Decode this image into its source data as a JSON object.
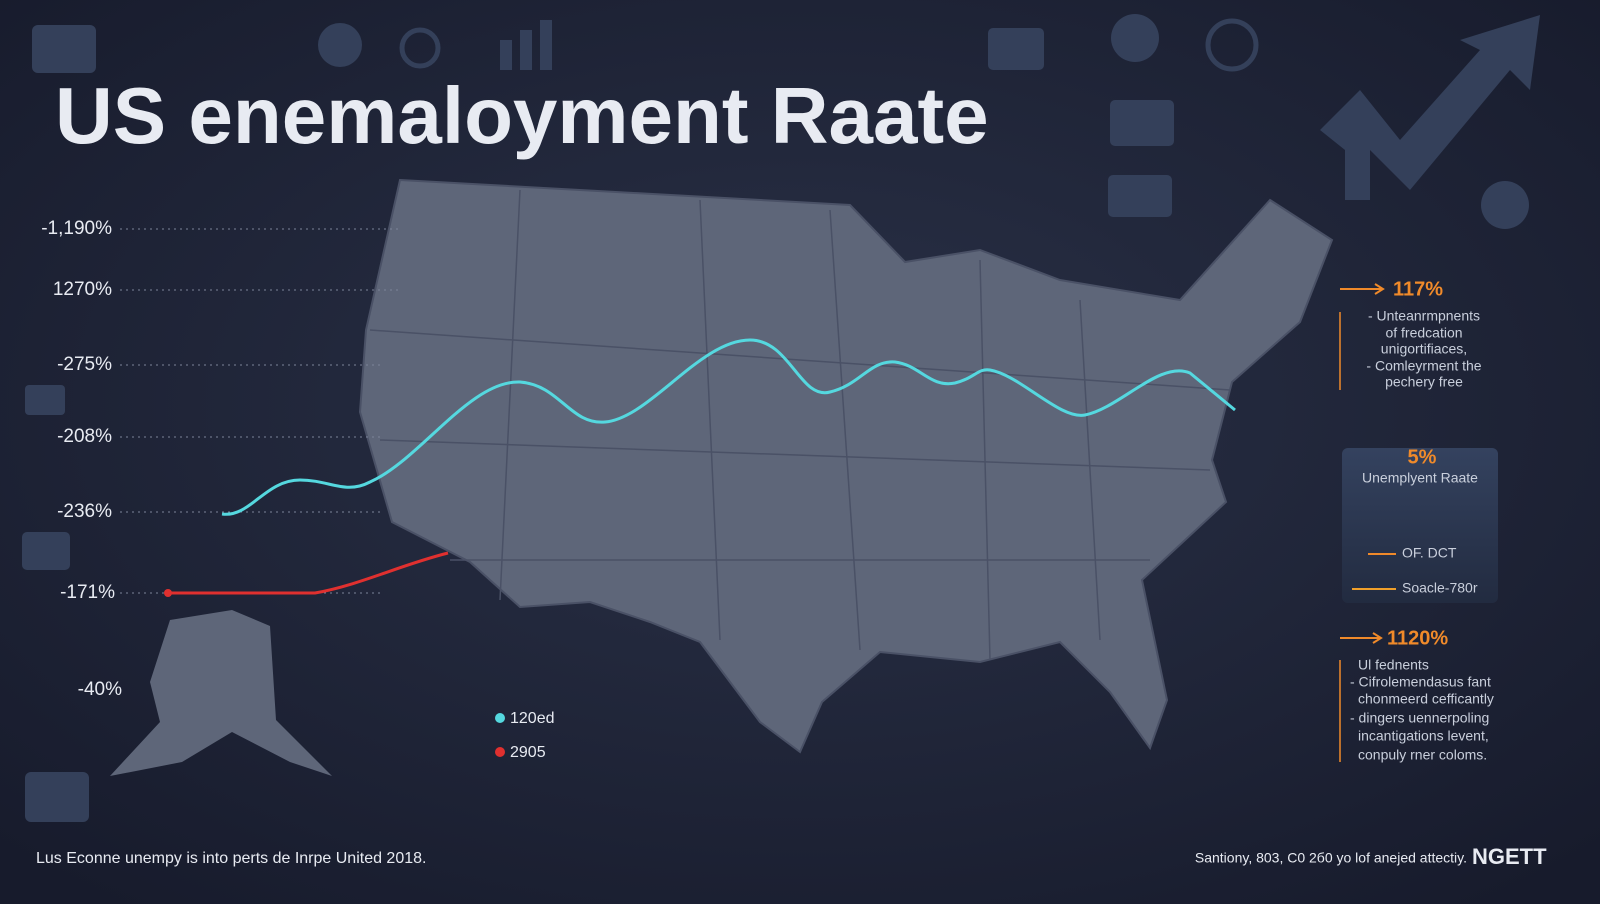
{
  "title": "US enemaloyment Raate",
  "axis_labels": [
    "-1,190%",
    "1270%",
    "-275%",
    "-208%",
    "-236%",
    "-171%",
    "-40%"
  ],
  "legend": [
    "120ed",
    "2905"
  ],
  "callout_top": {
    "value": "117%",
    "lines": [
      "- Unteanrmpnents",
      "of fredcation",
      "unigortifiaces,",
      "- Comleyrment the",
      "pechery free"
    ]
  },
  "panel": {
    "value": "5%",
    "title": "Unemplyent Raate",
    "items": [
      "OF. DCT",
      "Soacle-780r"
    ]
  },
  "callout_bottom": {
    "value": "1120%",
    "lines": [
      "Ul fednents",
      "- Cifrolemendasus fant",
      "chonmeerd cefficantly",
      "- dingers uennerpoling",
      "incantigations levent,",
      "conpuly rner coloms."
    ]
  },
  "footer": {
    "left": "Lus Econne unempy is into perts de Inrpe United 2018.",
    "right": "Santiony, 803, C0 2б0 yo lof anejed attectiy.",
    "brand": "NGETT"
  }
}
